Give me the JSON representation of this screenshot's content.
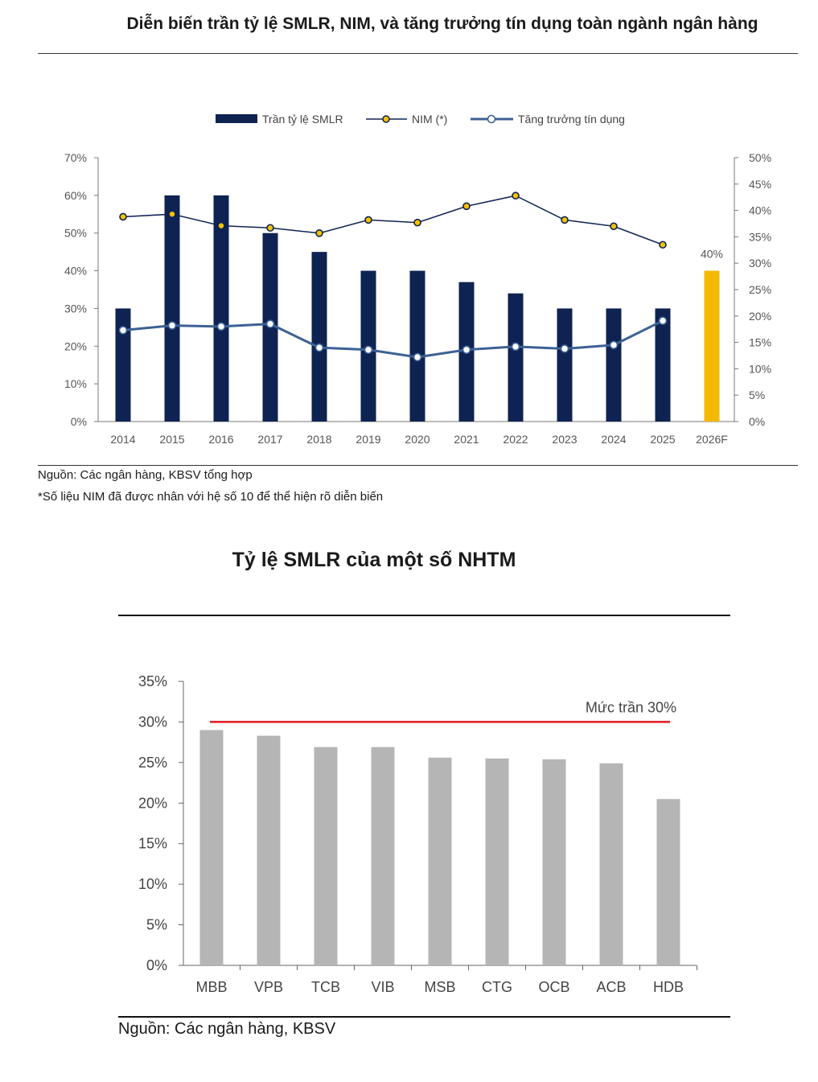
{
  "chart1_title": "Diễn biến trần tỷ lệ SMLR, NIM, và tăng trưởng tín dụng toàn ngành ngân hàng",
  "chart1_source": "Nguồn: Các ngân hàng, KBSV tổng hợp",
  "chart1_note": "*Số liệu NIM đã được nhân với hệ số 10 để thể hiện rõ diễn biến",
  "chart2_title": "Tỷ lệ SMLR của một số NHTM",
  "chart2_source": "Nguồn: Các ngân hàng, KBSV",
  "colors": {
    "bar_navy": "#0f2352",
    "bar_highlight": "#f5b800",
    "nim_line": "#0f2352",
    "nim_marker": "#f2c200",
    "credit_line": "#3c6194",
    "bar_gray": "#b5b5b5",
    "ceiling_line": "#e0191f"
  },
  "chart_data": [
    {
      "type": "bar",
      "categories": [
        "2014",
        "2015",
        "2016",
        "2017",
        "2018",
        "2019",
        "2020",
        "2021",
        "2022",
        "2023",
        "2024",
        "2025",
        "2026F"
      ],
      "series": [
        {
          "name": "Trần tỷ lệ SMLR",
          "type": "bar",
          "axis": "left",
          "values": [
            30,
            60,
            60,
            50,
            45,
            40,
            40,
            37,
            34,
            30,
            30,
            30,
            40
          ]
        },
        {
          "name": "NIM (*)",
          "type": "line",
          "axis": "right",
          "values": [
            38.8,
            39.3,
            37.1,
            36.7,
            35.7,
            38.2,
            37.7,
            40.8,
            42.8,
            38.2,
            37.0,
            33.5,
            null
          ]
        },
        {
          "name": "Tăng trưởng tín dụng",
          "type": "line",
          "axis": "right",
          "values": [
            17.3,
            18.2,
            18.0,
            18.5,
            14.0,
            13.6,
            12.2,
            13.6,
            14.2,
            13.8,
            14.5,
            19.1,
            null
          ]
        }
      ],
      "highlight_label": "40%",
      "left_ticks": [
        "0%",
        "10%",
        "20%",
        "30%",
        "40%",
        "50%",
        "60%",
        "70%"
      ],
      "right_ticks": [
        "0%",
        "5%",
        "10%",
        "15%",
        "20%",
        "25%",
        "30%",
        "35%",
        "40%",
        "45%",
        "50%"
      ],
      "ylim_left": [
        0,
        70
      ],
      "ylim_right": [
        0,
        50
      ],
      "legend_position": "top"
    },
    {
      "type": "bar",
      "categories": [
        "MBB",
        "VPB",
        "TCB",
        "VIB",
        "MSB",
        "CTG",
        "OCB",
        "ACB",
        "HDB"
      ],
      "values": [
        29.0,
        28.3,
        26.9,
        26.9,
        25.6,
        25.5,
        25.4,
        24.9,
        20.5
      ],
      "reference_line": {
        "label": "Mức trần 30%",
        "value": 30
      },
      "ticks": [
        "0%",
        "5%",
        "10%",
        "15%",
        "20%",
        "25%",
        "30%",
        "35%"
      ],
      "ylim": [
        0,
        35
      ]
    }
  ]
}
